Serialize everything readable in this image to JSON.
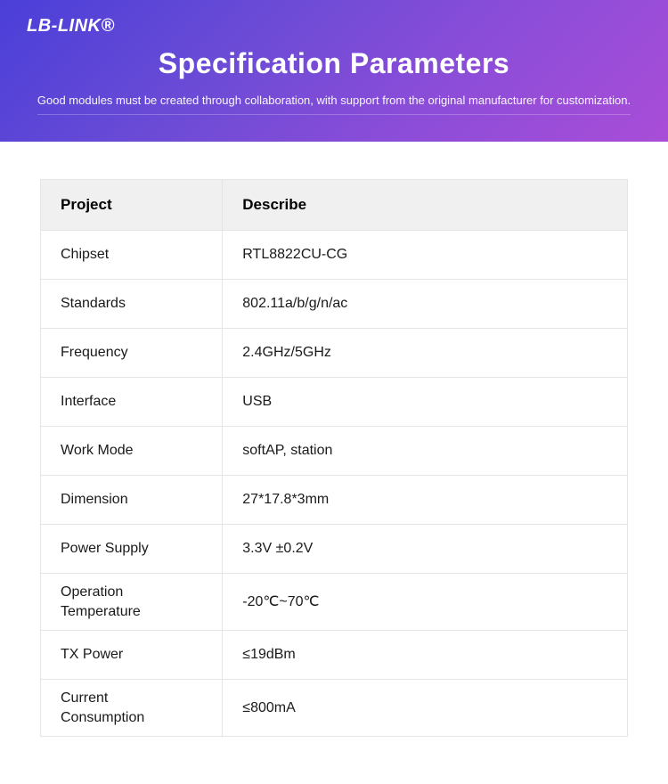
{
  "header": {
    "logo_text": "LB-LINK®",
    "title": "Specification Parameters",
    "subtitle": "Good modules must be created through collaboration, with support from the original manufacturer for customization."
  },
  "colors": {
    "gradient_start": "#4a3fd8",
    "gradient_end": "#a94dd8",
    "header_bg": "#f0f0f0",
    "border": "#e5e5e5",
    "text": "#1a1a1a",
    "white": "#ffffff"
  },
  "table": {
    "columns": [
      "Project",
      "Describe"
    ],
    "rows": [
      {
        "project": "Chipset",
        "describe": "RTL8822CU-CG",
        "compact": false
      },
      {
        "project": "Standards",
        "describe": "802.11a/b/g/n/ac",
        "compact": false
      },
      {
        "project": "Frequency",
        "describe": "2.4GHz/5GHz",
        "compact": false
      },
      {
        "project": "Interface",
        "describe": "USB",
        "compact": false
      },
      {
        "project": "Work Mode",
        "describe": "softAP, station",
        "compact": false
      },
      {
        "project": "Dimension",
        "describe": "27*17.8*3mm",
        "compact": false
      },
      {
        "project": "Power Supply",
        "describe": "3.3V ±0.2V",
        "compact": false
      },
      {
        "project": "Operation Temperature",
        "describe": "-20℃~70℃",
        "compact": true
      },
      {
        "project": "TX Power",
        "describe": "≤19dBm",
        "compact": false
      },
      {
        "project": "Current Consumption",
        "describe": "≤800mA",
        "compact": true
      }
    ]
  }
}
